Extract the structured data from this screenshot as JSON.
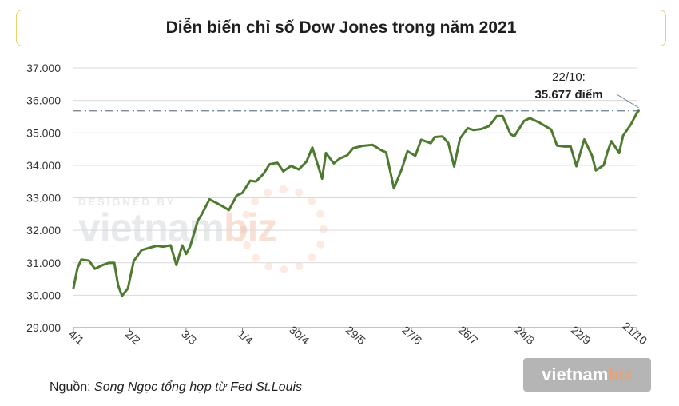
{
  "title": "Diễn biến chỉ số Dow Jones trong năm 2021",
  "source": {
    "prefix": "Nguồn:",
    "text": "Song Ngọc tổng hợp từ Fed St.Louis"
  },
  "watermark": {
    "small": "DESIGNED BY",
    "brand": "vietnam",
    "brand_suffix": "biz"
  },
  "colors": {
    "line": "#4e7a30",
    "reference": "#6f7f8c",
    "grid": "#d9d9d9",
    "title_border": "#e8cf6b"
  },
  "chart_data": {
    "type": "line",
    "title": "Diễn biến chỉ số Dow Jones trong năm 2021",
    "xlabel": "",
    "ylabel": "",
    "ylim": [
      29000,
      37000
    ],
    "y_ticks": [
      "29.000",
      "30.000",
      "31.000",
      "32.000",
      "33.000",
      "34.000",
      "35.000",
      "36.000",
      "37.000"
    ],
    "x_ticks": [
      "4/1",
      "2/2",
      "3/3",
      "1/4",
      "30/4",
      "29/5",
      "27/6",
      "26/7",
      "24/8",
      "22/9",
      "21/10"
    ],
    "grid": "horizontal",
    "reference_line": {
      "value": 35677,
      "style": "dash-dot"
    },
    "annotation": {
      "date": "22/10:",
      "value": "35.677 điểm"
    },
    "series": [
      {
        "dates": [
          "4/1",
          "6/1",
          "8/1",
          "12/1",
          "15/1",
          "19/1",
          "22/1",
          "25/1",
          "27/1",
          "29/1",
          "1/2",
          "4/2",
          "8/2",
          "12/2",
          "16/2",
          "19/2",
          "23/2",
          "26/2",
          "1/3",
          "3/3",
          "5/3",
          "9/3",
          "11/3",
          "15/3",
          "18/3",
          "22/3",
          "25/3",
          "29/3",
          "1/4",
          "5/4",
          "8/4",
          "12/4",
          "15/4",
          "19/4",
          "22/4",
          "26/4",
          "30/4",
          "4/5",
          "7/5",
          "12/5",
          "14/5",
          "18/5",
          "21/5",
          "25/5",
          "28/5",
          "2/6",
          "7/6",
          "11/6",
          "14/6",
          "18/6",
          "22/6",
          "25/6",
          "29/6",
          "2/7",
          "7/7",
          "9/7",
          "13/7",
          "16/7",
          "19/7",
          "22/7",
          "26/7",
          "29/7",
          "2/8",
          "6/8",
          "10/8",
          "13/8",
          "17/8",
          "19/8",
          "24/8",
          "27/8",
          "1/9",
          "7/9",
          "10/9",
          "14/9",
          "17/9",
          "20/9",
          "24/9",
          "28/9",
          "30/9",
          "4/10",
          "6/10",
          "8/10",
          "12/10",
          "14/10",
          "18/10",
          "21/10",
          "22/10"
        ],
        "values": [
          30224,
          30829,
          31098,
          31068,
          30815,
          30930,
          30997,
          31000,
          30303,
          29983,
          30212,
          31055,
          31385,
          31458,
          31522,
          31494,
          31537,
          30932,
          31536,
          31270,
          31496,
          32298,
          32485,
          32953,
          32862,
          32732,
          32620,
          33066,
          33153,
          33527,
          33503,
          33746,
          34035,
          34078,
          33815,
          33982,
          33875,
          34114,
          34548,
          33588,
          34382,
          34060,
          34207,
          34312,
          34529,
          34600,
          34630,
          34480,
          34393,
          33290,
          33877,
          34434,
          34292,
          34786,
          34681,
          34870,
          34888,
          34687,
          33962,
          34823,
          35144,
          35085,
          35117,
          35208,
          35515,
          35515,
          34961,
          34894,
          35366,
          35455,
          35313,
          35100,
          34607,
          34577,
          34584,
          33970,
          34798,
          34299,
          33844,
          34002,
          34417,
          34746,
          34378,
          34912,
          35258,
          35603,
          35677
        ]
      }
    ]
  }
}
